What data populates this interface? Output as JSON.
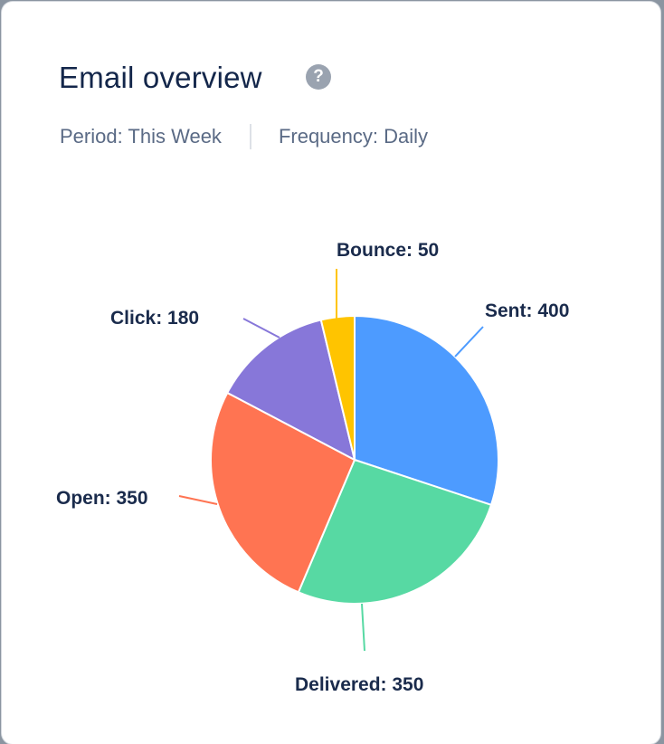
{
  "card": {
    "title": "Email overview",
    "help_icon": "?",
    "period_label": "Period: This Week",
    "frequency_label": "Frequency: Daily"
  },
  "chart_data": {
    "type": "pie",
    "title": "Email overview",
    "categories": [
      "Sent",
      "Delivered",
      "Open",
      "Click",
      "Bounce"
    ],
    "values": [
      400,
      350,
      350,
      180,
      50
    ],
    "colors": [
      "#4d9bff",
      "#57d9a3",
      "#ff7452",
      "#8777d9",
      "#ffc400"
    ],
    "labels": [
      "Sent: 400",
      "Delivered: 350",
      "Open: 350",
      "Click: 180",
      "Bounce: 50"
    ],
    "start_angle_deg": 0,
    "direction": "clockwise",
    "legend": "none"
  }
}
